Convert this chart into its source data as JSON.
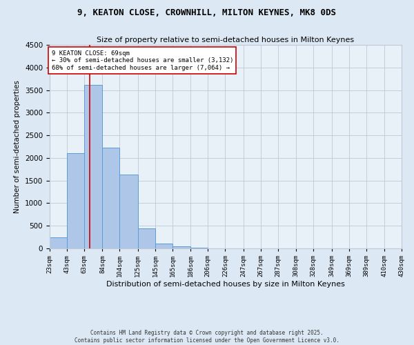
{
  "title": "9, KEATON CLOSE, CROWNHILL, MILTON KEYNES, MK8 0DS",
  "subtitle": "Size of property relative to semi-detached houses in Milton Keynes",
  "xlabel": "Distribution of semi-detached houses by size in Milton Keynes",
  "ylabel": "Number of semi-detached properties",
  "footnote": "Contains HM Land Registry data © Crown copyright and database right 2025.\nContains public sector information licensed under the Open Government Licence v3.0.",
  "bin_labels": [
    "23sqm",
    "43sqm",
    "63sqm",
    "84sqm",
    "104sqm",
    "125sqm",
    "145sqm",
    "165sqm",
    "186sqm",
    "206sqm",
    "226sqm",
    "247sqm",
    "267sqm",
    "287sqm",
    "308sqm",
    "328sqm",
    "349sqm",
    "369sqm",
    "389sqm",
    "410sqm",
    "430sqm"
  ],
  "bar_heights": [
    250,
    2100,
    3620,
    2220,
    1630,
    440,
    100,
    40,
    15,
    0,
    0,
    0,
    0,
    0,
    0,
    0,
    0,
    0,
    0,
    0
  ],
  "bin_edges": [
    23,
    43,
    63,
    84,
    104,
    125,
    145,
    165,
    186,
    206,
    226,
    247,
    267,
    287,
    308,
    328,
    349,
    369,
    389,
    410,
    430
  ],
  "bar_color": "#aec6e8",
  "bar_edge_color": "#5b9bd5",
  "background_color": "#dce9f5",
  "plot_bg_color": "#e8f0f8",
  "grid_color": "#c0c8d8",
  "ylim": [
    0,
    4500
  ],
  "yticks": [
    0,
    500,
    1000,
    1500,
    2000,
    2500,
    3000,
    3500,
    4000,
    4500
  ],
  "property_size": 69,
  "property_label": "9 KEATON CLOSE: 69sqm",
  "annotation_line1": "← 30% of semi-detached houses are smaller (3,132)",
  "annotation_line2": "68% of semi-detached houses are larger (7,064) →",
  "vline_color": "#cc0000",
  "annotation_box_color": "#ffffff",
  "annotation_box_edge": "#cc0000"
}
